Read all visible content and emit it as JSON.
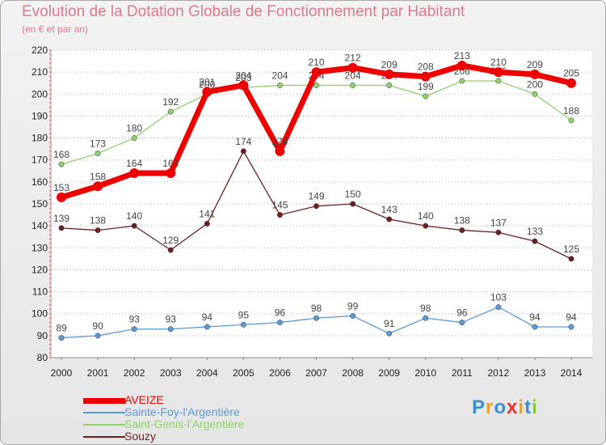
{
  "title": "Evolution de la Dotation Globale de Fonctionnement par Habitant",
  "subtitle": "(en € et par an)",
  "logo": {
    "text": "Proxiti",
    "colors": [
      "#3a8fd8",
      "#f0a020",
      "#3a8fd8",
      "#e83030",
      "#f0a020",
      "#3a8fd8",
      "#8cc63f"
    ]
  },
  "colors": {
    "title": "#e07a8a",
    "axis_text": "#222222",
    "grid": "#e07a8a",
    "label_text": "#444444"
  },
  "chart_data": {
    "type": "line",
    "title": "Evolution de la Dotation Globale de Fonctionnement par Habitant",
    "subtitle": "(en € et par an)",
    "xlabel": "",
    "ylabel": "",
    "ylim": [
      80,
      220
    ],
    "yticks": [
      80,
      90,
      100,
      110,
      120,
      130,
      140,
      150,
      160,
      170,
      180,
      190,
      200,
      210,
      220
    ],
    "categories": [
      "2000",
      "2001",
      "2002",
      "2003",
      "2004",
      "2005",
      "2006",
      "2007",
      "2008",
      "2009",
      "2010",
      "2011",
      "2012",
      "2013",
      "2014"
    ],
    "legend_position": "bottom-left",
    "series": [
      {
        "name": "Souzy",
        "color": "#6b1f1f",
        "values": [
          139,
          138,
          140,
          129,
          141,
          174,
          145,
          149,
          150,
          143,
          140,
          138,
          137,
          133,
          125
        ]
      },
      {
        "name": "Saint-Genis-l'Argentière",
        "color": "#8ed36a",
        "values": [
          168,
          173,
          180,
          192,
          200,
          203,
          204,
          204,
          204,
          204,
          199,
          206,
          206,
          200,
          188
        ]
      },
      {
        "name": "Sainte-Foy-l'Argentière",
        "color": "#5b9bd5",
        "values": [
          89,
          90,
          93,
          93,
          94,
          95,
          96,
          98,
          99,
          91,
          98,
          96,
          103,
          94,
          94
        ]
      },
      {
        "name": "AVEIZE",
        "color": "#ee0000",
        "values": [
          153,
          158,
          164,
          164,
          201,
          204,
          174,
          210,
          212,
          209,
          208,
          213,
          210,
          209,
          205
        ]
      }
    ]
  }
}
